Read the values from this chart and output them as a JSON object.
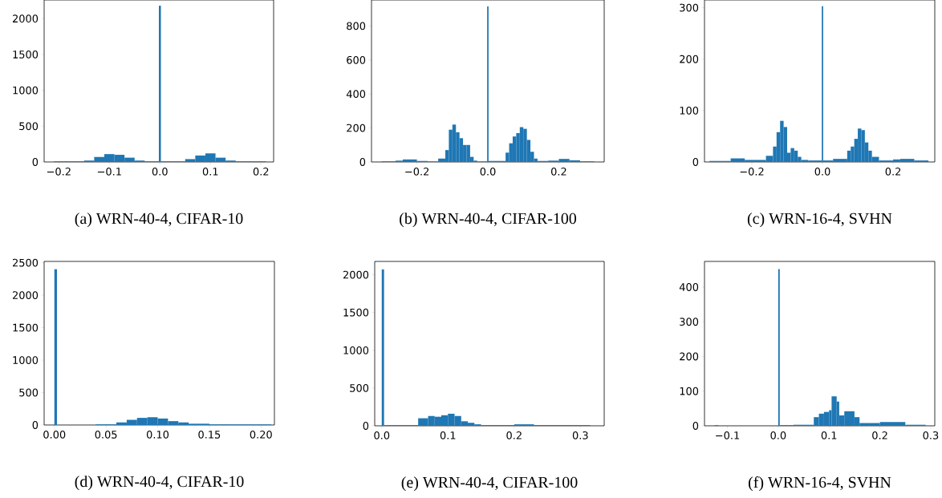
{
  "chart_data": [
    {
      "type": "histogram",
      "title": "(a) WRN-40-4, CIFAR-10",
      "color": "#1f77b4",
      "xlim": [
        -0.229,
        0.225
      ],
      "ylim": [
        0,
        2260
      ],
      "xticks": [
        {
          "value": -0.2,
          "label": "−0.2"
        },
        {
          "value": -0.1,
          "label": "−0.1"
        },
        {
          "value": 0,
          "label": "0.0"
        },
        {
          "value": 0.1,
          "label": "0.1"
        },
        {
          "value": 0.2,
          "label": "0.2"
        }
      ],
      "yticks": [
        0,
        500,
        1000,
        1500,
        2000
      ],
      "bins": [
        -0.21,
        -0.19,
        -0.17,
        -0.15,
        -0.13,
        -0.11,
        -0.09,
        -0.07,
        -0.05,
        -0.03,
        -0.01,
        -0.002,
        0.002,
        0.01,
        0.03,
        0.05,
        0.07,
        0.09,
        0.11,
        0.13,
        0.15,
        0.17,
        0.19,
        0.21
      ],
      "values": [
        10,
        10,
        10,
        20,
        70,
        110,
        100,
        60,
        20,
        10,
        10,
        2180,
        10,
        10,
        10,
        40,
        90,
        120,
        60,
        20,
        10,
        10,
        10
      ]
    },
    {
      "type": "histogram",
      "title": "(b) WRN-40-4, CIFAR-100",
      "color": "#1f77b4",
      "xlim": [
        -0.328,
        0.328
      ],
      "ylim": [
        0,
        953
      ],
      "xticks": [
        {
          "value": -0.2,
          "label": "−0.2"
        },
        {
          "value": 0,
          "label": "0.0"
        },
        {
          "value": 0.2,
          "label": "0.2"
        }
      ],
      "yticks": [
        0,
        200,
        400,
        600,
        800
      ],
      "bins": [
        -0.3,
        -0.26,
        -0.24,
        -0.2,
        -0.17,
        -0.14,
        -0.12,
        -0.11,
        -0.1,
        -0.09,
        -0.08,
        -0.07,
        -0.06,
        -0.05,
        -0.04,
        -0.03,
        -0.002,
        0.002,
        0.05,
        0.06,
        0.07,
        0.08,
        0.09,
        0.1,
        0.11,
        0.12,
        0.13,
        0.14,
        0.17,
        0.2,
        0.23,
        0.26,
        0.3
      ],
      "values": [
        4,
        8,
        15,
        6,
        3,
        20,
        70,
        190,
        220,
        175,
        140,
        100,
        100,
        30,
        8,
        3,
        915,
        6,
        55,
        110,
        150,
        170,
        205,
        195,
        130,
        60,
        20,
        6,
        8,
        18,
        10,
        4
      ]
    },
    {
      "type": "histogram",
      "title": "(c) WRN-16-4, SVHN",
      "color": "#1f77b4",
      "xlim": [
        -0.334,
        0.318
      ],
      "ylim": [
        0,
        315
      ],
      "xticks": [
        {
          "value": -0.2,
          "label": "−0.2"
        },
        {
          "value": 0,
          "label": "0.0"
        },
        {
          "value": 0.2,
          "label": "0.2"
        }
      ],
      "yticks": [
        0,
        100,
        200,
        300
      ],
      "bins": [
        -0.32,
        -0.26,
        -0.22,
        -0.16,
        -0.14,
        -0.13,
        -0.12,
        -0.11,
        -0.1,
        -0.09,
        -0.08,
        -0.07,
        -0.06,
        -0.04,
        -0.002,
        0.002,
        0.03,
        0.07,
        0.08,
        0.09,
        0.1,
        0.11,
        0.12,
        0.13,
        0.14,
        0.16,
        0.2,
        0.22,
        0.26,
        0.3
      ],
      "values": [
        2,
        7,
        4,
        12,
        30,
        58,
        80,
        68,
        18,
        27,
        22,
        10,
        4,
        3,
        303,
        3,
        6,
        22,
        30,
        45,
        65,
        62,
        38,
        22,
        10,
        3,
        5,
        6,
        3
      ]
    },
    {
      "type": "histogram",
      "title": "(d) WRN-40-4, CIFAR-10",
      "color": "#1f77b4",
      "xlim": [
        -0.0099,
        0.213
      ],
      "ylim": [
        0,
        2520
      ],
      "xticks": [
        {
          "value": 0,
          "label": "0.00"
        },
        {
          "value": 0.05,
          "label": "0.05"
        },
        {
          "value": 0.1,
          "label": "0.10"
        },
        {
          "value": 0.15,
          "label": "0.15"
        },
        {
          "value": 0.2,
          "label": "0.20"
        }
      ],
      "yticks": [
        0,
        500,
        1000,
        1500,
        2000,
        2500
      ],
      "bins": [
        0,
        0.0025,
        0.04,
        0.06,
        0.07,
        0.08,
        0.09,
        0.1,
        0.11,
        0.12,
        0.13,
        0.15,
        0.17,
        0.21
      ],
      "values": [
        2400,
        0,
        10,
        40,
        80,
        110,
        120,
        100,
        60,
        40,
        20,
        10,
        10
      ]
    },
    {
      "type": "histogram",
      "title": "(e) WRN-40-4, CIFAR-100",
      "color": "#1f77b4",
      "xlim": [
        -0.0106,
        0.336
      ],
      "ylim": [
        0,
        2176
      ],
      "xticks": [
        {
          "value": 0,
          "label": "0.0"
        },
        {
          "value": 0.1,
          "label": "0.1"
        },
        {
          "value": 0.2,
          "label": "0.2"
        },
        {
          "value": 0.3,
          "label": "0.3"
        }
      ],
      "yticks": [
        0,
        500,
        1000,
        1500,
        2000
      ],
      "bins": [
        0,
        0.0035,
        0.04,
        0.055,
        0.07,
        0.08,
        0.09,
        0.1,
        0.11,
        0.12,
        0.13,
        0.14,
        0.15,
        0.2,
        0.23,
        0.3,
        0.315
      ],
      "values": [
        2070,
        10,
        10,
        100,
        130,
        120,
        140,
        160,
        130,
        60,
        40,
        20,
        10,
        20,
        10,
        10
      ]
    },
    {
      "type": "histogram",
      "title": "(f) WRN-16-4, SVHN",
      "color": "#1f77b4",
      "xlim": [
        -0.145,
        0.308
      ],
      "ylim": [
        0,
        474
      ],
      "xticks": [
        {
          "value": -0.1,
          "label": "−0.1"
        },
        {
          "value": 0,
          "label": "0.0"
        },
        {
          "value": 0.1,
          "label": "0.1"
        },
        {
          "value": 0.2,
          "label": "0.2"
        },
        {
          "value": 0.3,
          "label": "0.3"
        }
      ],
      "yticks": [
        0,
        100,
        200,
        300,
        400
      ],
      "bins": [
        -0.125,
        -0.118,
        0,
        0.003,
        0.03,
        0.07,
        0.08,
        0.09,
        0.1,
        0.105,
        0.115,
        0.12,
        0.13,
        0.15,
        0.16,
        0.18,
        0.2,
        0.25,
        0.29
      ],
      "values": [
        2,
        0,
        452,
        2,
        3,
        25,
        35,
        40,
        45,
        85,
        70,
        30,
        42,
        25,
        8,
        8,
        11,
        3
      ]
    }
  ]
}
